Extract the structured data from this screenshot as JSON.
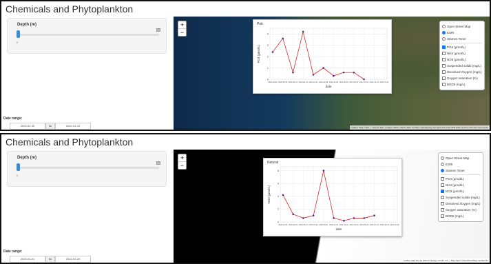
{
  "panels": [
    {
      "title": "Chemicals and Phytoplankton",
      "depth_label": "Depth (m)",
      "slider_min": "0",
      "slider_max": "30",
      "date_label": "Date range:",
      "date_start": "2020-04-30",
      "date_sep": "to",
      "date_end": "2022-01-31",
      "zoom_in": "+",
      "zoom_out": "−",
      "layers": [
        {
          "label": "Open Street Map",
          "kind": "radio",
          "checked": false
        },
        {
          "label": "ESRI",
          "kind": "radio",
          "checked": true
        },
        {
          "label": "Stamen Toner",
          "kind": "radio",
          "checked": false
        },
        {
          "label": "PO4 (µmol/L)",
          "kind": "checkbox",
          "checked": true
        },
        {
          "label": "NH4 (µmol/L)",
          "kind": "checkbox",
          "checked": false
        },
        {
          "label": "NO3 (µmol/L)",
          "kind": "checkbox",
          "checked": false
        },
        {
          "label": "Suspended solids (mg/L)",
          "kind": "checkbox",
          "checked": false
        },
        {
          "label": "Dissolved Oxygen (mg/L)",
          "kind": "checkbox",
          "checked": false
        },
        {
          "label": "Oxygen saturation (%)",
          "kind": "checkbox",
          "checked": false
        },
        {
          "label": "BOD5 (mg/L)",
          "kind": "checkbox",
          "checked": false
        }
      ],
      "attribution": "Leaflet | Tiles © Esri — Source: Esri, i-cubed, USDA, USGS, AEX, GeoEye, Getmapping, Aerogrid, IGN, IGP, UPR-EGP, and the GIS User Community",
      "map": "satellite",
      "chart_data": {
        "type": "line",
        "title": "Poti",
        "x_label": "date",
        "y_label": "PO4 (µmol/L)",
        "categories": [
          "2020-04-30",
          "2020-06-30",
          "2020-08-31",
          "2020-10-31",
          "2020-12-31",
          "2021-02-28",
          "2021-04-30",
          "2021-06-30",
          "2021-08-31",
          "2021-10-31",
          "2021-12-31",
          "2022-01-31"
        ],
        "values": [
          2.4,
          3.6,
          0.6,
          4.2,
          0.4,
          1.0,
          0.3,
          0.6,
          0.6,
          0.0,
          null,
          null
        ],
        "color": "#d62728",
        "point_color": "#5b2a86",
        "ylim": [
          0,
          4.5
        ],
        "yticks": [
          0,
          1,
          2,
          3,
          4
        ],
        "grid": true
      }
    },
    {
      "title": "Chemicals and Phytoplankton",
      "depth_label": "Depth (m)",
      "slider_min": "0",
      "slider_max": "30",
      "date_label": "Date range:",
      "date_start": "2020-01-01",
      "date_sep": "to",
      "date_end": "2022-01-20",
      "zoom_in": "+",
      "zoom_out": "−",
      "layers": [
        {
          "label": "Open Street Map",
          "kind": "radio",
          "checked": false
        },
        {
          "label": "ESRI",
          "kind": "radio",
          "checked": false
        },
        {
          "label": "Stamen Toner",
          "kind": "radio",
          "checked": true
        },
        {
          "label": "PO4 (µmol/L)",
          "kind": "checkbox",
          "checked": false
        },
        {
          "label": "NH4 (µmol/L)",
          "kind": "checkbox",
          "checked": false
        },
        {
          "label": "NO3 (µmol/L)",
          "kind": "checkbox",
          "checked": true
        },
        {
          "label": "Suspended solids (mg/L)",
          "kind": "checkbox",
          "checked": false
        },
        {
          "label": "Dissolved Oxygen (mg/L)",
          "kind": "checkbox",
          "checked": false
        },
        {
          "label": "Oxygen saturation (%)",
          "kind": "checkbox",
          "checked": false
        },
        {
          "label": "BOD5 (mg/L)",
          "kind": "checkbox",
          "checked": false
        }
      ],
      "attribution": "Leaflet | Map tiles by Stamen Design, CC BY 3.0 — Map data © OpenStreetMap contributors",
      "map": "toner",
      "chart_data": {
        "type": "line",
        "title": "Natural",
        "x_label": "date",
        "y_label": "NO3 (µmol/L)",
        "categories": [
          "2020-01-01",
          "2020-03-01",
          "2020-05-01",
          "2020-07-01",
          "2020-09-01",
          "2020-11-01",
          "2021-01-01",
          "2021-03-01",
          "2021-05-01",
          "2021-07-01",
          "2021-09-01",
          "2022-01-20"
        ],
        "values": [
          4.2,
          1.2,
          0.6,
          1.0,
          8.0,
          0.6,
          0.2,
          0.6,
          0.6,
          1.0,
          null,
          null
        ],
        "color": "#d62728",
        "point_color": "#5b2a86",
        "ylim": [
          0,
          8.6
        ],
        "yticks": [
          0,
          2,
          4,
          6,
          8
        ],
        "grid": true
      }
    }
  ]
}
